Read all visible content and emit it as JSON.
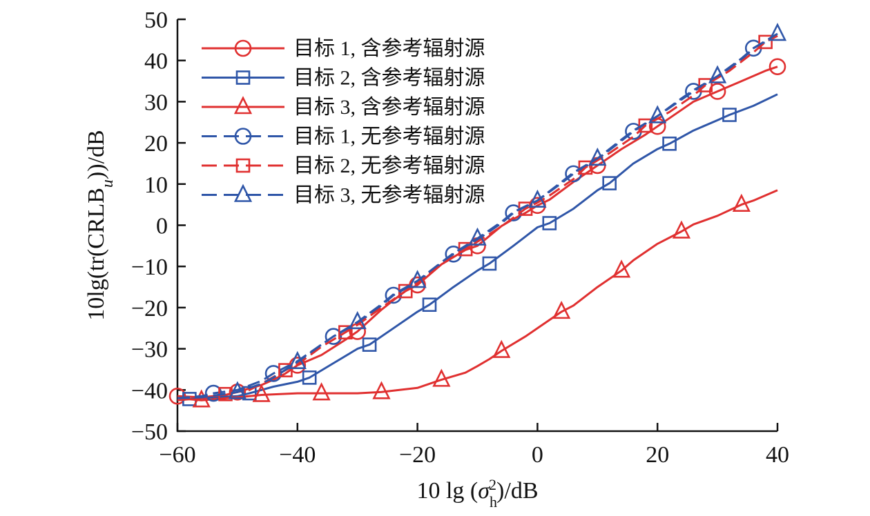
{
  "chart_data": {
    "type": "line",
    "title": "",
    "xlabel_parts": [
      "10 lg (",
      "σ",
      "h",
      "2",
      ")/dB"
    ],
    "ylabel_parts": [
      "10lg(tr(CRLB",
      "u",
      "))/dB"
    ],
    "xlim": [
      -60,
      40
    ],
    "ylim": [
      -50,
      50
    ],
    "xticks": [
      -60,
      -40,
      -20,
      0,
      20,
      40
    ],
    "yticks": [
      -50,
      -40,
      -30,
      -20,
      -10,
      0,
      10,
      20,
      30,
      40,
      50
    ],
    "tick_labels_x": [
      "−60",
      "−40",
      "−20",
      "0",
      "20",
      "40"
    ],
    "tick_labels_y": [
      "−50",
      "−40",
      "−30",
      "−20",
      "−10",
      "0",
      "10",
      "20",
      "30",
      "40",
      "50"
    ],
    "grid": false,
    "legend_position": "top-left",
    "series": [
      {
        "name": "目标 1, 含参考辐射源",
        "color": "#e03030",
        "dash": "solid",
        "marker": "circle",
        "x": [
          -60,
          -56,
          -52,
          -50,
          -46,
          -44,
          -42,
          -40,
          -36,
          -32,
          -30,
          -26,
          -24,
          -22,
          -20,
          -16,
          -12,
          -10,
          -6,
          -4,
          -2,
          0,
          2,
          6,
          10,
          14,
          18,
          20,
          24,
          26,
          30,
          34,
          38,
          40
        ],
        "y": [
          -41.5,
          -41.8,
          -41.2,
          -40.5,
          -38.8,
          -37.5,
          -36,
          -34,
          -31.5,
          -27.8,
          -25.8,
          -20.5,
          -18.2,
          -16,
          -14.5,
          -9.5,
          -6,
          -5,
          -0.2,
          1.5,
          3,
          4.8,
          6.2,
          10.5,
          14.5,
          18.5,
          22,
          24,
          28,
          30,
          32.5,
          35,
          37.5,
          38.5
        ],
        "marker_x": [
          -60,
          -50,
          -40,
          -30,
          -20,
          -10,
          0,
          10,
          20,
          30,
          40
        ],
        "marker_y": [
          -41.5,
          -40.5,
          -34,
          -25.8,
          -14.5,
          -5,
          4.8,
          14.5,
          24,
          32.5,
          38.5
        ]
      },
      {
        "name": "目标 2, 含参考辐射源",
        "color": "#2f56a8",
        "dash": "solid",
        "marker": "square",
        "x": [
          -60,
          -58,
          -54,
          -50,
          -48,
          -46,
          -44,
          -40,
          -38,
          -34,
          -30,
          -28,
          -24,
          -20,
          -18,
          -14,
          -10,
          -8,
          -4,
          0,
          2,
          6,
          10,
          12,
          16,
          20,
          22,
          26,
          30,
          32,
          36,
          40
        ],
        "y": [
          -42.5,
          -42.2,
          -41.8,
          -41.5,
          -40.8,
          -40,
          -39.2,
          -38,
          -37,
          -33.5,
          -30,
          -29,
          -25,
          -21,
          -19.3,
          -15,
          -11,
          -9.3,
          -5,
          -0.5,
          0.5,
          4,
          8.5,
          10.2,
          15,
          18.5,
          19.8,
          23,
          25.5,
          26.8,
          29,
          31.8
        ],
        "marker_x": [
          -58,
          -48,
          -38,
          -28,
          -18,
          -8,
          2,
          12,
          22,
          32
        ],
        "marker_y": [
          -42.2,
          -40.8,
          -37,
          -29,
          -19.3,
          -9.3,
          0.5,
          10.2,
          19.8,
          26.8
        ]
      },
      {
        "name": "目标 3, 含参考辐射源",
        "color": "#e03030",
        "dash": "solid",
        "marker": "triangle",
        "x": [
          -60,
          -56,
          -50,
          -46,
          -40,
          -36,
          -30,
          -26,
          -20,
          -16,
          -12,
          -10,
          -8,
          -6,
          -2,
          0,
          4,
          6,
          10,
          14,
          16,
          20,
          24,
          26,
          30,
          34,
          36,
          40
        ],
        "y": [
          -42,
          -42.5,
          -41.8,
          -41.2,
          -40.8,
          -40.8,
          -40.8,
          -40.5,
          -39.5,
          -37.5,
          -35.8,
          -34.2,
          -32.5,
          -30.5,
          -27,
          -25,
          -21,
          -19.5,
          -15,
          -11,
          -8.5,
          -4.5,
          -1.5,
          0.2,
          2.3,
          5,
          6,
          8.5
        ],
        "marker_x": [
          -56,
          -46,
          -36,
          -26,
          -16,
          -6,
          4,
          14,
          24,
          34
        ],
        "marker_y": [
          -42.5,
          -41.2,
          -40.8,
          -40.5,
          -37.5,
          -30.5,
          -21,
          -11,
          -1.5,
          5
        ]
      },
      {
        "name": "目标 1, 无参考辐射源",
        "color": "#2f56a8",
        "dash": "dashed",
        "marker": "circle",
        "x": [
          -60,
          -56,
          -54,
          -50,
          -46,
          -44,
          -40,
          -36,
          -34,
          -30,
          -26,
          -24,
          -20,
          -16,
          -14,
          -10,
          -6,
          -4,
          0,
          4,
          6,
          10,
          14,
          16,
          20,
          24,
          26,
          30,
          34,
          36,
          40
        ],
        "y": [
          -42,
          -41.5,
          -40.8,
          -40,
          -37.8,
          -36,
          -33,
          -29,
          -27,
          -23.8,
          -19.5,
          -17,
          -13.8,
          -9.2,
          -7,
          -3.5,
          0.5,
          3,
          6,
          10.2,
          12.5,
          16,
          20.5,
          22.8,
          26.5,
          30.5,
          32.5,
          36,
          40.2,
          43,
          46
        ],
        "marker_x": [
          -54,
          -44,
          -34,
          -24,
          -14,
          -4,
          6,
          16,
          26,
          36
        ],
        "marker_y": [
          -40.8,
          -36,
          -27,
          -17,
          -7,
          3,
          12.5,
          22.8,
          32.5,
          43
        ]
      },
      {
        "name": "目标 2, 无参考辐射源",
        "color": "#e03030",
        "dash": "dashed",
        "marker": "square",
        "x": [
          -60,
          -56,
          -52,
          -48,
          -46,
          -42,
          -40,
          -36,
          -32,
          -30,
          -26,
          -22,
          -20,
          -16,
          -12,
          -10,
          -6,
          -2,
          0,
          2,
          6,
          8,
          12,
          16,
          18,
          22,
          26,
          28,
          32,
          36,
          38,
          40
        ],
        "y": [
          -42.5,
          -42,
          -41,
          -40,
          -38.5,
          -35.2,
          -33.8,
          -29.5,
          -26,
          -24.2,
          -20,
          -16,
          -14,
          -9.5,
          -5.8,
          -4,
          -0.3,
          4,
          5.5,
          7.2,
          11.2,
          14,
          17.5,
          21.5,
          24.2,
          27.5,
          31.5,
          34,
          37.5,
          42,
          44.5,
          46
        ],
        "marker_x": [
          -52,
          -42,
          -32,
          -22,
          -12,
          -2,
          8,
          18,
          28,
          38
        ],
        "marker_y": [
          -41,
          -35.2,
          -26,
          -16,
          -5.8,
          4,
          14,
          24.2,
          34,
          44.5
        ]
      },
      {
        "name": "目标 3, 无参考辐射源",
        "color": "#2f56a8",
        "dash": "dashed",
        "marker": "triangle",
        "x": [
          -60,
          -56,
          -50,
          -46,
          -44,
          -40,
          -36,
          -34,
          -30,
          -26,
          -24,
          -20,
          -16,
          -14,
          -10,
          -6,
          -4,
          0,
          4,
          6,
          10,
          14,
          16,
          20,
          24,
          26,
          30,
          34,
          36,
          40
        ],
        "y": [
          -42,
          -41.8,
          -40.5,
          -38.5,
          -37,
          -33.2,
          -29,
          -27,
          -23.5,
          -19.2,
          -16.8,
          -13.5,
          -9,
          -6.8,
          -3.2,
          0.8,
          3.2,
          6,
          10.5,
          12.8,
          16.2,
          20.8,
          23,
          26.5,
          30.8,
          32.8,
          36.2,
          40.5,
          43,
          46.5
        ],
        "marker_x": [
          -50,
          -40,
          -30,
          -20,
          -10,
          0,
          10,
          20,
          30,
          40
        ],
        "marker_y": [
          -40.5,
          -33.2,
          -23.5,
          -13.5,
          -3.2,
          6,
          16.2,
          26.5,
          36.2,
          46.5
        ]
      }
    ]
  }
}
